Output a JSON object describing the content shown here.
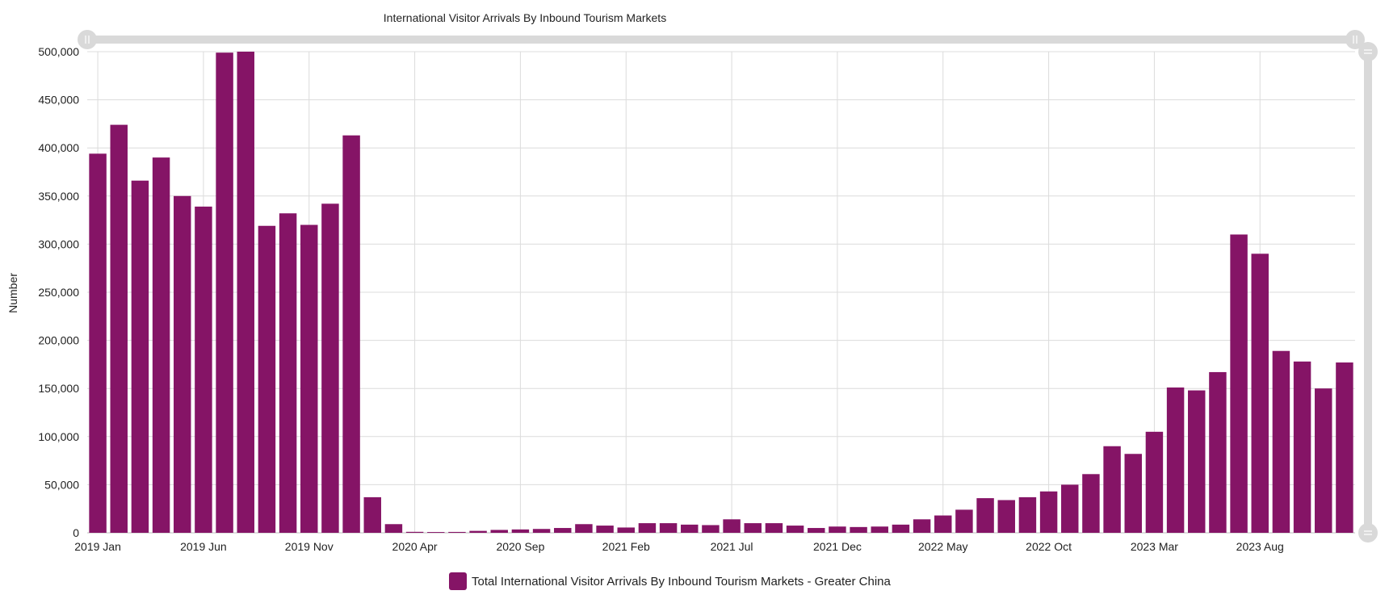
{
  "colors": {
    "bar": "#851466",
    "grid": "#dcdcdc",
    "scrollbar": "#d9d9d9",
    "text": "#222222"
  },
  "chart_data": {
    "type": "bar",
    "title": "International Visitor Arrivals By Inbound Tourism Markets",
    "ylabel": "Number",
    "xlabel": "",
    "ylim": [
      0,
      500000
    ],
    "y_ticks": [
      "0",
      "50,000",
      "100,000",
      "150,000",
      "200,000",
      "250,000",
      "300,000",
      "350,000",
      "400,000",
      "450,000",
      "500,000"
    ],
    "x_tick_labels": [
      "2019 Jan",
      "2019 Jun",
      "2019 Nov",
      "2020 Apr",
      "2020 Sep",
      "2021 Feb",
      "2021 Jul",
      "2021 Dec",
      "2022 May",
      "2022 Oct",
      "2023 Mar",
      "2023 Aug"
    ],
    "grid": true,
    "legend_position": "bottom-center",
    "categories": [
      "2019 Jan",
      "2019 Feb",
      "2019 Mar",
      "2019 Apr",
      "2019 May",
      "2019 Jun",
      "2019 Jul",
      "2019 Aug",
      "2019 Sep",
      "2019 Oct",
      "2019 Nov",
      "2019 Dec",
      "2020 Jan",
      "2020 Feb",
      "2020 Mar",
      "2020 Apr",
      "2020 May",
      "2020 Jun",
      "2020 Jul",
      "2020 Aug",
      "2020 Sep",
      "2020 Oct",
      "2020 Nov",
      "2020 Dec",
      "2021 Jan",
      "2021 Feb",
      "2021 Mar",
      "2021 Apr",
      "2021 May",
      "2021 Jun",
      "2021 Jul",
      "2021 Aug",
      "2021 Sep",
      "2021 Oct",
      "2021 Nov",
      "2021 Dec",
      "2022 Jan",
      "2022 Feb",
      "2022 Mar",
      "2022 Apr",
      "2022 May",
      "2022 Jun",
      "2022 Jul",
      "2022 Aug",
      "2022 Sep",
      "2022 Oct",
      "2022 Nov",
      "2022 Dec",
      "2023 Jan",
      "2023 Feb",
      "2023 Mar",
      "2023 Apr",
      "2023 May",
      "2023 Jun",
      "2023 Jul",
      "2023 Aug",
      "2023 Sep",
      "2023 Oct",
      "2023 Nov",
      "2023 Dec"
    ],
    "series": [
      {
        "name": "Total International Visitor Arrivals By Inbound Tourism Markets - Greater China",
        "values": [
          394000,
          424000,
          366000,
          390000,
          350000,
          339000,
          499000,
          500000,
          319000,
          332000,
          320000,
          342000,
          413000,
          37000,
          9000,
          1000,
          800,
          900,
          2000,
          3000,
          3500,
          4000,
          5000,
          9000,
          7500,
          5500,
          10000,
          10000,
          8500,
          8000,
          14000,
          10000,
          10000,
          7500,
          5000,
          6500,
          6000,
          6500,
          8500,
          14000,
          18000,
          24000,
          36000,
          34000,
          37000,
          43000,
          50000,
          61000,
          90000,
          82000,
          105000,
          151000,
          148000,
          167000,
          310000,
          290000,
          189000,
          178000,
          150000,
          177000
        ]
      }
    ]
  }
}
